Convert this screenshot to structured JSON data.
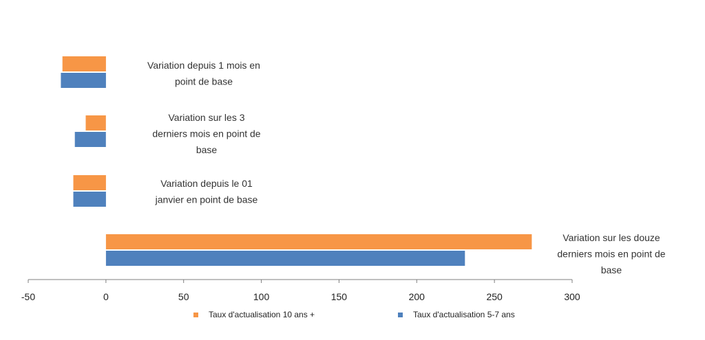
{
  "chart_data": {
    "type": "bar",
    "orientation": "horizontal",
    "categories": [
      "Variation depuis 1 mois en point de base",
      "Variation sur les 3 derniers mois en point de base",
      "Variation depuis le 01 janvier en point de base",
      "Variation sur les douze derniers mois en point de base"
    ],
    "category_label_lines": [
      [
        "Variation depuis 1 mois en",
        "point de base"
      ],
      [
        "Variation sur les 3",
        "derniers mois en point de",
        "base"
      ],
      [
        "Variation depuis le 01",
        "janvier en point de base"
      ],
      [
        "Variation sur les douze",
        "derniers mois en point de",
        "base"
      ]
    ],
    "series": [
      {
        "name": "Taux d'actualisation 10 ans +",
        "color": "#f79646",
        "values": [
          -28,
          -13,
          -21,
          274
        ]
      },
      {
        "name": "Taux d'actualisation 5-7 ans",
        "color": "#4f81bd",
        "values": [
          -29,
          -20,
          -21,
          231
        ]
      }
    ],
    "xlim": [
      -50,
      300
    ],
    "xticks": [
      "-50",
      "0",
      "50",
      "100",
      "150",
      "200",
      "250",
      "300"
    ],
    "grid": false,
    "legend": "bottom"
  }
}
